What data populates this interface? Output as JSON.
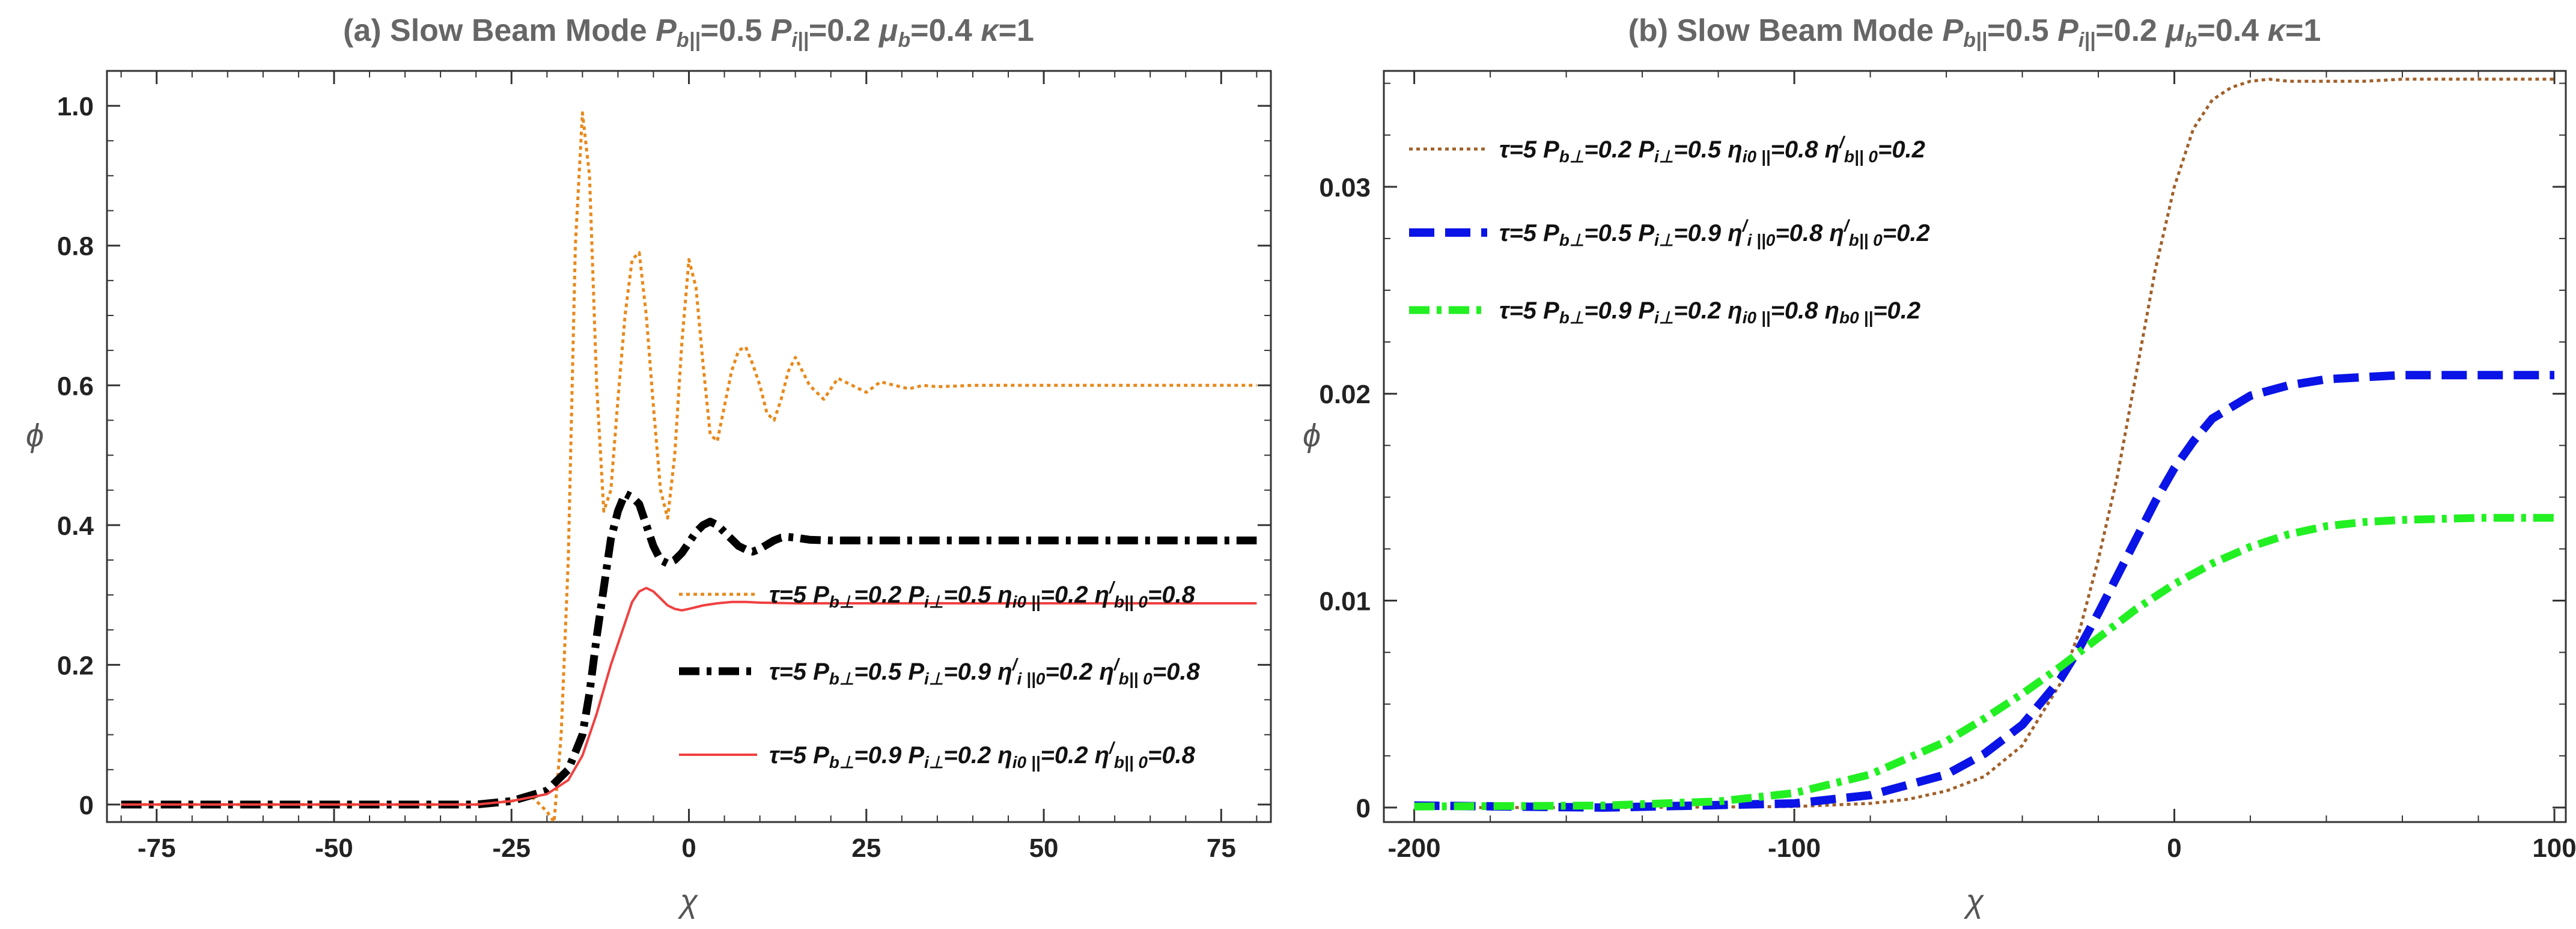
{
  "chart_data": [
    {
      "type": "line",
      "title": "(a) Slow Beam Mode P_b||=0.5 P_i||=0.2 μ_b=0.4 κ=1",
      "title_parts": {
        "prefix": "(a) Slow Beam Mode ",
        "p_b": "P",
        "p_b_sub": "b||",
        "p_b_val": "=0.5 ",
        "p_i": "P",
        "p_i_sub": "i||",
        "p_i_val": "=0.2 ",
        "mu": "μ",
        "mu_sub": "b",
        "mu_val": "=0.4 ",
        "kappa": "κ",
        "kappa_val": "=1"
      },
      "xlabel": "χ",
      "ylabel": "ϕ",
      "xlim": [
        -82,
        82
      ],
      "ylim": [
        -0.025,
        1.05
      ],
      "xticks": [
        -75,
        -50,
        -25,
        0,
        25,
        50,
        75
      ],
      "xtick_labels": [
        "-75",
        "-50",
        "-25",
        "0",
        "25",
        "50",
        "75"
      ],
      "yticks": [
        0,
        0.2,
        0.4,
        0.6,
        0.8,
        1.0
      ],
      "ytick_labels": [
        "0",
        "0.2",
        "0.4",
        "0.6",
        "0.8",
        "1.0"
      ],
      "series": [
        {
          "name": "τ=5 P_b⊥=0.2 P_i⊥=0.5 η_i0||=0.2 η'_b||0=0.8",
          "color": "#E8891C",
          "style": "dotted",
          "x": [
            -80,
            -30,
            -25,
            -22,
            -20,
            -19,
            -18,
            -17,
            -16,
            -15,
            -14,
            -13,
            -12,
            -11,
            -10,
            -9,
            -8,
            -7,
            -6,
            -5,
            -4,
            -3,
            -2,
            -1,
            0,
            1,
            2,
            3,
            4,
            5,
            6,
            7,
            8,
            9,
            10,
            11,
            12,
            13,
            14,
            15,
            17,
            19,
            21,
            23,
            25,
            27,
            29,
            31,
            33,
            35,
            40,
            50,
            60,
            70,
            80
          ],
          "y": [
            0,
            0,
            0.005,
            0.01,
            -0.01,
            -0.025,
            0.1,
            0.35,
            0.8,
            0.99,
            0.9,
            0.6,
            0.42,
            0.45,
            0.58,
            0.7,
            0.78,
            0.79,
            0.7,
            0.57,
            0.45,
            0.41,
            0.5,
            0.66,
            0.78,
            0.74,
            0.63,
            0.53,
            0.52,
            0.57,
            0.62,
            0.65,
            0.655,
            0.63,
            0.6,
            0.56,
            0.55,
            0.58,
            0.62,
            0.64,
            0.6,
            0.58,
            0.61,
            0.6,
            0.59,
            0.605,
            0.6,
            0.595,
            0.6,
            0.598,
            0.6,
            0.6,
            0.6,
            0.6,
            0.6
          ],
          "legend": {
            "tau": "τ=5 ",
            "pb": "P",
            "pb_sub": "b⊥",
            "pb_val": "=0.2 ",
            "pi": "P",
            "pi_sub": "i⊥",
            "pi_val": "=0.5 ",
            "eta1": "η",
            "eta1_sub": "i0 ||",
            "eta1_val": "=0.2 ",
            "eta2": "η",
            "eta2_sup": "/",
            "eta2_sub": "b|| 0",
            "eta2_val": "=0.8"
          }
        },
        {
          "name": "τ=5 P_b⊥=0.5 P_i⊥=0.9 η'_i||0=0.2 η'_b||0=0.8",
          "color": "#000000",
          "style": "dashdot",
          "x": [
            -80,
            -30,
            -25,
            -20,
            -17,
            -15,
            -14,
            -13,
            -12,
            -11,
            -10,
            -9,
            -8,
            -7,
            -6,
            -5,
            -4,
            -3,
            -2,
            -1,
            0,
            1,
            2,
            3,
            4,
            5,
            6,
            7,
            8,
            9,
            10,
            11,
            12,
            13,
            14,
            15,
            17,
            20,
            25,
            30,
            40,
            50,
            60,
            70,
            80
          ],
          "y": [
            0,
            0,
            0.005,
            0.02,
            0.05,
            0.1,
            0.16,
            0.24,
            0.31,
            0.38,
            0.42,
            0.445,
            0.44,
            0.43,
            0.4,
            0.37,
            0.35,
            0.345,
            0.35,
            0.36,
            0.375,
            0.39,
            0.4,
            0.405,
            0.4,
            0.39,
            0.38,
            0.37,
            0.365,
            0.362,
            0.366,
            0.372,
            0.378,
            0.382,
            0.383,
            0.382,
            0.379,
            0.378,
            0.378,
            0.378,
            0.378,
            0.378,
            0.378,
            0.378,
            0.378
          ],
          "legend": {
            "tau": "τ=5 ",
            "pb": "P",
            "pb_sub": "b⊥",
            "pb_val": "=0.5 ",
            "pi": "P",
            "pi_sub": "i⊥",
            "pi_val": "=0.9 ",
            "eta1": "η",
            "eta1_sup": "/",
            "eta1_sub": "i ||0",
            "eta1_val": "=0.2 ",
            "eta2": "η",
            "eta2_sup": "/",
            "eta2_sub": "b|| 0",
            "eta2_val": "=0.8"
          }
        },
        {
          "name": "τ=5 P_b⊥=0.9 P_i⊥=0.2 η_i0||=0.2 η'_b||0=0.8",
          "color": "#F04040",
          "style": "solid",
          "x": [
            -80,
            -30,
            -25,
            -20,
            -17,
            -15,
            -13,
            -11,
            -9,
            -8,
            -7,
            -6,
            -5,
            -4,
            -3,
            -2,
            -1,
            0,
            2,
            4,
            6,
            8,
            10,
            15,
            20,
            30,
            40,
            50,
            60,
            70,
            80
          ],
          "y": [
            0,
            0,
            0.005,
            0.015,
            0.035,
            0.07,
            0.13,
            0.2,
            0.26,
            0.29,
            0.305,
            0.31,
            0.305,
            0.295,
            0.285,
            0.28,
            0.278,
            0.28,
            0.285,
            0.288,
            0.29,
            0.29,
            0.289,
            0.288,
            0.288,
            0.288,
            0.288,
            0.288,
            0.288,
            0.288,
            0.288
          ],
          "legend": {
            "tau": "τ=5 ",
            "pb": "P",
            "pb_sub": "b⊥",
            "pb_val": "=0.9 ",
            "pi": "P",
            "pi_sub": "i⊥",
            "pi_val": "=0.2 ",
            "eta1": "η",
            "eta1_sub": "i0 ||",
            "eta1_val": "=0.2 ",
            "eta2": "η",
            "eta2_sup": "/",
            "eta2_sub": "b|| 0",
            "eta2_val": "=0.8"
          }
        }
      ]
    },
    {
      "type": "line",
      "title": "(b) Slow Beam Mode P_b||=0.5 P_i||=0.2 μ_b=0.4 κ=1",
      "title_parts": {
        "prefix": "(b) Slow Beam Mode ",
        "p_b": "P",
        "p_b_sub": "b||",
        "p_b_val": "=0.5 ",
        "p_i": "P",
        "p_i_sub": "i||",
        "p_i_val": "=0.2 ",
        "mu": "μ",
        "mu_sub": "b",
        "mu_val": "=0.4 ",
        "kappa": "κ",
        "kappa_val": "=1"
      },
      "xlabel": "χ",
      "ylabel": "ϕ",
      "xlim": [
        -208,
        103
      ],
      "ylim": [
        -0.0007,
        0.0356
      ],
      "xticks": [
        -200,
        -100,
        0,
        100
      ],
      "xtick_labels": [
        "-200",
        "-100",
        "0",
        "100"
      ],
      "yticks": [
        0,
        0.01,
        0.02,
        0.03
      ],
      "ytick_labels": [
        "0",
        "0.01",
        "0.02",
        "0.03"
      ],
      "series": [
        {
          "name": "τ=5 P_b⊥=0.2 P_i⊥=0.5 η_i0||=0.8 η'_b||0=0.2",
          "color": "#A0602A",
          "style": "dotted",
          "x": [
            -200,
            -150,
            -100,
            -80,
            -70,
            -60,
            -50,
            -40,
            -30,
            -25,
            -20,
            -15,
            -10,
            -5,
            0,
            5,
            10,
            15,
            20,
            25,
            30,
            40,
            50,
            60,
            80,
            100
          ],
          "y": [
            0,
            0,
            5e-05,
            0.0002,
            0.0004,
            0.0008,
            0.0015,
            0.003,
            0.006,
            0.0085,
            0.012,
            0.016,
            0.021,
            0.026,
            0.03,
            0.0328,
            0.0342,
            0.0348,
            0.0351,
            0.0352,
            0.0351,
            0.0351,
            0.0351,
            0.0352,
            0.0352,
            0.0352
          ],
          "legend": {
            "tau": "τ=5 ",
            "pb": "P",
            "pb_sub": "b⊥",
            "pb_val": "=0.2 ",
            "pi": "P",
            "pi_sub": "i⊥",
            "pi_val": "=0.5 ",
            "eta1": "η",
            "eta1_sub": "i0 ||",
            "eta1_val": "=0.8 ",
            "eta2": "η",
            "eta2_sup": "/",
            "eta2_sub": "b|| 0",
            "eta2_val": "=0.2"
          }
        },
        {
          "name": "τ=5 P_b⊥=0.5 P_i⊥=0.9 η'_i||0=0.8 η'_b||0=0.2",
          "color": "#0A14E6",
          "style": "dashed",
          "x": [
            -200,
            -150,
            -100,
            -80,
            -60,
            -50,
            -40,
            -30,
            -25,
            -20,
            -15,
            -10,
            -5,
            0,
            5,
            10,
            20,
            30,
            40,
            50,
            60,
            80,
            100
          ],
          "y": [
            0.0001,
            0,
            0.0002,
            0.0006,
            0.0016,
            0.0026,
            0.004,
            0.0062,
            0.0077,
            0.0094,
            0.0112,
            0.013,
            0.0148,
            0.0164,
            0.0177,
            0.0188,
            0.0199,
            0.0204,
            0.0207,
            0.0208,
            0.0209,
            0.0209,
            0.0209
          ],
          "legend": {
            "tau": "τ=5 ",
            "pb": "P",
            "pb_sub": "b⊥",
            "pb_val": "=0.5 ",
            "pi": "P",
            "pi_sub": "i⊥",
            "pi_val": "=0.9 ",
            "eta1": "η",
            "eta1_sup": "/",
            "eta1_sub": "i ||0",
            "eta1_val": "=0.8 ",
            "eta2": "η",
            "eta2_sup": "/",
            "eta2_sub": "b|| 0",
            "eta2_val": "=0.2"
          }
        },
        {
          "name": "τ=5 P_b⊥=0.9 P_i⊥=0.2 η_i0||=0.8 η_b0||=0.2",
          "color": "#22F022",
          "style": "dashdot",
          "x": [
            -200,
            -150,
            -120,
            -100,
            -80,
            -60,
            -50,
            -40,
            -30,
            -20,
            -10,
            0,
            10,
            20,
            30,
            40,
            50,
            60,
            80,
            100
          ],
          "y": [
            5e-05,
            0.0001,
            0.0003,
            0.0007,
            0.0016,
            0.0032,
            0.0043,
            0.0055,
            0.0068,
            0.0082,
            0.0096,
            0.0108,
            0.0118,
            0.0126,
            0.0132,
            0.0136,
            0.0138,
            0.0139,
            0.014,
            0.014
          ],
          "legend": {
            "tau": "τ=5 ",
            "pb": "P",
            "pb_sub": "b⊥",
            "pb_val": "=0.9 ",
            "pi": "P",
            "pi_sub": "i⊥",
            "pi_val": "=0.2 ",
            "eta1": "η",
            "eta1_sub": "i0 ||",
            "eta1_val": "=0.8 ",
            "eta2": "η",
            "eta2_sub": "b0 ||",
            "eta2_val": "=0.2"
          }
        }
      ]
    }
  ]
}
